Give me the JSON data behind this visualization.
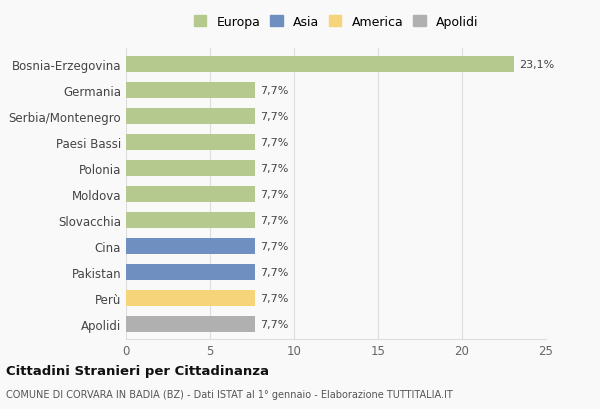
{
  "categories": [
    "Bosnia-Erzegovina",
    "Germania",
    "Serbia/Montenegro",
    "Paesi Bassi",
    "Polonia",
    "Moldova",
    "Slovacchia",
    "Cina",
    "Pakistan",
    "Perù",
    "Apolidi"
  ],
  "values": [
    23.1,
    7.7,
    7.7,
    7.7,
    7.7,
    7.7,
    7.7,
    7.7,
    7.7,
    7.7,
    7.7
  ],
  "labels": [
    "23,1%",
    "7,7%",
    "7,7%",
    "7,7%",
    "7,7%",
    "7,7%",
    "7,7%",
    "7,7%",
    "7,7%",
    "7,7%",
    "7,7%"
  ],
  "colors": [
    "#b5c98e",
    "#b5c98e",
    "#b5c98e",
    "#b5c98e",
    "#b5c98e",
    "#b5c98e",
    "#b5c98e",
    "#6e8fbf",
    "#6e8fbf",
    "#f5d47a",
    "#b0b0b0"
  ],
  "legend_labels": [
    "Europa",
    "Asia",
    "America",
    "Apolidi"
  ],
  "legend_colors": [
    "#b5c98e",
    "#6e8fbf",
    "#f5d47a",
    "#b0b0b0"
  ],
  "xlim": [
    0,
    25
  ],
  "xticks": [
    0,
    5,
    10,
    15,
    20,
    25
  ],
  "title": "Cittadini Stranieri per Cittadinanza",
  "subtitle": "COMUNE DI CORVARA IN BADIA (BZ) - Dati ISTAT al 1° gennaio - Elaborazione TUTTITALIA.IT",
  "bg_color": "#f9f9f9",
  "grid_color": "#dddddd",
  "bar_height": 0.62
}
